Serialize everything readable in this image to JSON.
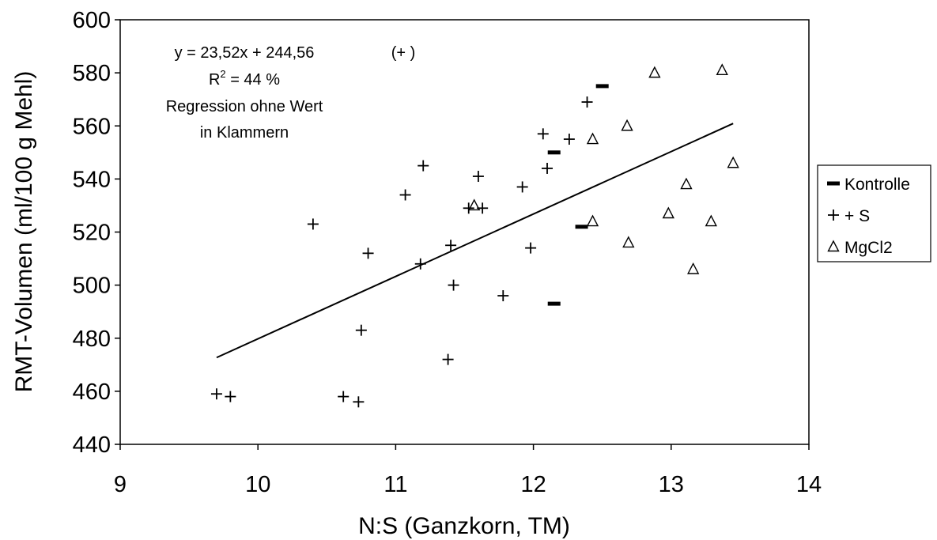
{
  "chart_data": {
    "type": "scatter",
    "xlabel": "N:S (Ganzkorn, TM)",
    "ylabel": "RMT-Volumen (ml/100 g Mehl)",
    "xlim": [
      9,
      14
    ],
    "ylim": [
      440,
      600
    ],
    "xticks": [
      "9",
      "10",
      "11",
      "12",
      "13",
      "14"
    ],
    "yticks": [
      "440",
      "460",
      "480",
      "500",
      "520",
      "540",
      "560",
      "580",
      "600"
    ],
    "grid": false,
    "legend_position": "right",
    "annotations": {
      "equation": "y = 23,52x + 244,56",
      "r2_prefix": "R",
      "r2_sup": "2",
      "r2_suffix": " = 44 %",
      "note_line1": "Regression ohne Wert",
      "note_line2": "in Klammern",
      "bracket_marker": "(+ )"
    },
    "regression": {
      "slope": 23.52,
      "intercept": 244.56,
      "x_range": [
        9.7,
        13.45
      ]
    },
    "series": [
      {
        "name": "Kontrolle",
        "marker": "dash",
        "points": [
          [
            12.15,
            550
          ],
          [
            12.5,
            575
          ],
          [
            12.35,
            522
          ],
          [
            12.15,
            493
          ]
        ]
      },
      {
        "name": "+ S",
        "marker": "plus",
        "points": [
          [
            9.7,
            459
          ],
          [
            9.8,
            458
          ],
          [
            10.4,
            523
          ],
          [
            10.62,
            458
          ],
          [
            10.73,
            456
          ],
          [
            10.75,
            483
          ],
          [
            10.8,
            512
          ],
          [
            11.07,
            534
          ],
          [
            11.18,
            508
          ],
          [
            11.2,
            545
          ],
          [
            11.38,
            472
          ],
          [
            11.4,
            515
          ],
          [
            11.42,
            500
          ],
          [
            11.53,
            529
          ],
          [
            11.6,
            541
          ],
          [
            11.63,
            529
          ],
          [
            11.78,
            496
          ],
          [
            11.92,
            537
          ],
          [
            11.98,
            514
          ],
          [
            12.07,
            557
          ],
          [
            12.1,
            544
          ],
          [
            12.26,
            555
          ],
          [
            12.39,
            569
          ]
        ]
      },
      {
        "name": "MgCl2",
        "marker": "triangle",
        "points": [
          [
            11.57,
            530
          ],
          [
            12.43,
            555
          ],
          [
            12.43,
            524
          ],
          [
            12.68,
            560
          ],
          [
            12.69,
            516
          ],
          [
            12.88,
            580
          ],
          [
            12.98,
            527
          ],
          [
            13.11,
            538
          ],
          [
            13.16,
            506
          ],
          [
            13.29,
            524
          ],
          [
            13.37,
            581
          ],
          [
            13.45,
            546
          ]
        ]
      }
    ]
  }
}
